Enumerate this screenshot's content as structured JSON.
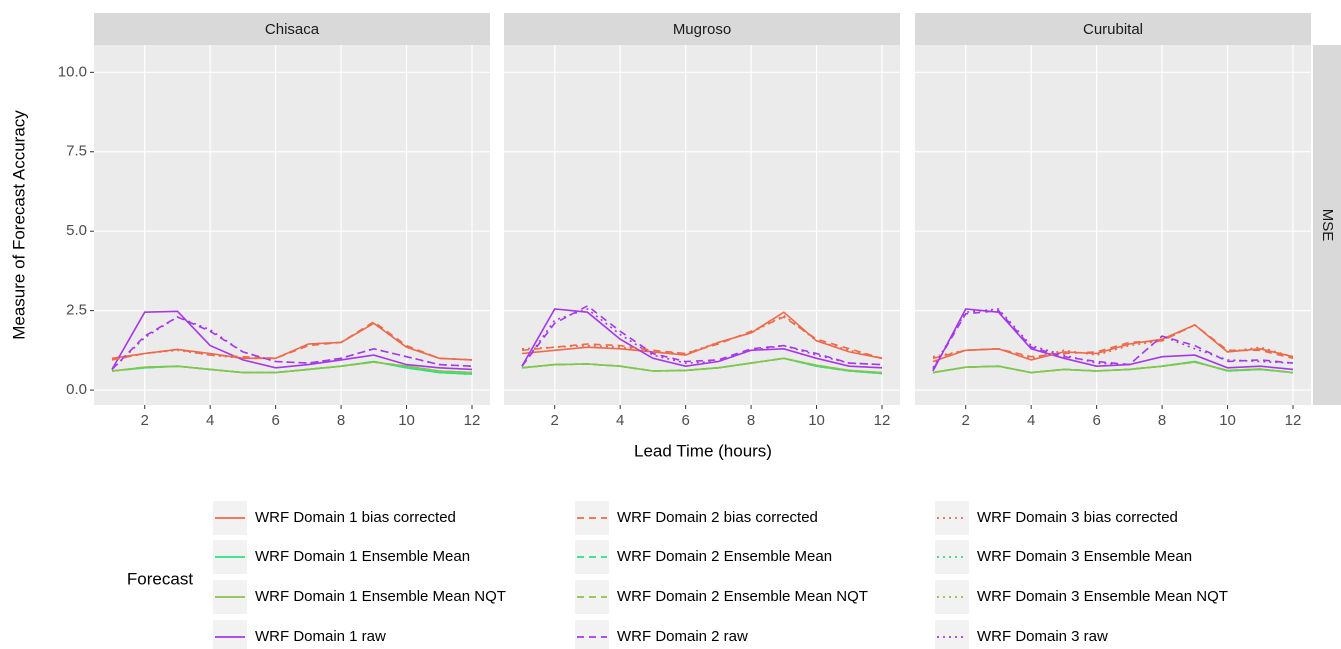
{
  "chart_data": {
    "type": "line",
    "x_label": "Lead Time (hours)",
    "y_label": "Measure of Forecast Accuracy",
    "facet_label": "MSE",
    "legend_title": "Forecast",
    "panels": [
      "Chisaca",
      "Mugroso",
      "Curubital"
    ],
    "x": [
      1,
      2,
      3,
      4,
      5,
      6,
      7,
      8,
      9,
      10,
      11,
      12
    ],
    "xlim": [
      0.45,
      12.55
    ],
    "xticks": [
      2,
      4,
      6,
      8,
      10,
      12
    ],
    "ylim": [
      -0.47,
      10.86
    ],
    "yticks": [
      {
        "value": 0,
        "label": "0.0"
      },
      {
        "value": 2.5,
        "label": "2.5"
      },
      {
        "value": 5,
        "label": "5.0"
      },
      {
        "value": 7.5,
        "label": "7.5"
      },
      {
        "value": 10,
        "label": "10.0"
      }
    ],
    "grid": true,
    "series": [
      {
        "name": "WRF Domain 1 bias corrected",
        "color": "#ee6a4c",
        "dash": "solid",
        "values": [
          [
            1.0,
            1.15,
            1.28,
            1.15,
            1.0,
            1.0,
            1.45,
            1.5,
            2.1,
            1.35,
            1.0,
            0.95
          ],
          [
            1.15,
            1.25,
            1.35,
            1.3,
            1.2,
            1.1,
            1.5,
            1.8,
            2.45,
            1.55,
            1.2,
            1.0
          ],
          [
            0.9,
            1.25,
            1.3,
            0.95,
            1.2,
            1.15,
            1.45,
            1.6,
            2.05,
            1.2,
            1.3,
            1.05
          ]
        ]
      },
      {
        "name": "WRF Domain 1 Ensemble Mean",
        "color": "#2be37f",
        "dash": "solid",
        "values": [
          [
            0.6,
            0.7,
            0.75,
            0.65,
            0.55,
            0.55,
            0.65,
            0.75,
            0.9,
            0.7,
            0.55,
            0.5
          ],
          [
            0.7,
            0.8,
            0.82,
            0.75,
            0.6,
            0.62,
            0.7,
            0.85,
            1.0,
            0.75,
            0.6,
            0.52
          ],
          [
            0.55,
            0.72,
            0.75,
            0.55,
            0.65,
            0.6,
            0.65,
            0.75,
            0.9,
            0.6,
            0.65,
            0.55
          ]
        ]
      },
      {
        "name": "WRF Domain 1 Ensemble Mean NQT",
        "color": "#8bc34a",
        "dash": "solid",
        "values": [
          [
            0.6,
            0.72,
            0.75,
            0.65,
            0.55,
            0.55,
            0.65,
            0.75,
            0.88,
            0.75,
            0.6,
            0.55
          ],
          [
            0.7,
            0.8,
            0.82,
            0.75,
            0.6,
            0.62,
            0.7,
            0.85,
            1.0,
            0.78,
            0.62,
            0.55
          ],
          [
            0.55,
            0.72,
            0.75,
            0.55,
            0.65,
            0.6,
            0.65,
            0.75,
            0.88,
            0.62,
            0.66,
            0.55
          ]
        ]
      },
      {
        "name": "WRF Domain 1 raw",
        "color": "#a638e8",
        "dash": "solid",
        "values": [
          [
            0.65,
            2.45,
            2.48,
            1.4,
            0.95,
            0.7,
            0.8,
            0.95,
            1.1,
            0.8,
            0.7,
            0.65
          ],
          [
            0.75,
            2.55,
            2.45,
            1.6,
            1.0,
            0.75,
            0.9,
            1.25,
            1.3,
            1.0,
            0.75,
            0.7
          ],
          [
            0.6,
            2.55,
            2.45,
            1.3,
            1.0,
            0.75,
            0.8,
            1.05,
            1.1,
            0.7,
            0.75,
            0.65
          ]
        ]
      },
      {
        "name": "WRF Domain 2 bias corrected",
        "color": "#ee6a4c",
        "dash": "dashed",
        "values": [
          [
            0.95,
            1.15,
            1.28,
            1.1,
            1.05,
            1.0,
            1.4,
            1.5,
            2.15,
            1.4,
            1.0,
            0.95
          ],
          [
            1.25,
            1.35,
            1.45,
            1.4,
            1.25,
            1.15,
            1.45,
            1.85,
            2.3,
            1.6,
            1.3,
            1.0
          ],
          [
            1.0,
            1.25,
            1.3,
            1.05,
            1.15,
            1.2,
            1.5,
            1.55,
            2.05,
            1.25,
            1.25,
            1.0
          ]
        ]
      },
      {
        "name": "WRF Domain 2 Ensemble Mean",
        "color": "#2be37f",
        "dash": "dashed",
        "values": [
          [
            0.6,
            0.7,
            0.75,
            0.65,
            0.55,
            0.55,
            0.65,
            0.75,
            0.9,
            0.7,
            0.55,
            0.5
          ],
          [
            0.7,
            0.8,
            0.82,
            0.75,
            0.6,
            0.62,
            0.7,
            0.85,
            1.0,
            0.75,
            0.6,
            0.52
          ],
          [
            0.55,
            0.72,
            0.75,
            0.55,
            0.65,
            0.6,
            0.65,
            0.75,
            0.9,
            0.6,
            0.65,
            0.55
          ]
        ]
      },
      {
        "name": "WRF Domain 2 Ensemble Mean NQT",
        "color": "#8bc34a",
        "dash": "dashed",
        "values": [
          [
            0.6,
            0.72,
            0.75,
            0.65,
            0.55,
            0.55,
            0.65,
            0.75,
            0.88,
            0.75,
            0.6,
            0.55
          ],
          [
            0.7,
            0.8,
            0.82,
            0.75,
            0.6,
            0.62,
            0.7,
            0.85,
            1.0,
            0.78,
            0.62,
            0.55
          ],
          [
            0.55,
            0.72,
            0.75,
            0.55,
            0.65,
            0.6,
            0.65,
            0.75,
            0.88,
            0.62,
            0.66,
            0.55
          ]
        ]
      },
      {
        "name": "WRF Domain 2 raw",
        "color": "#a638e8",
        "dash": "dashed",
        "values": [
          [
            0.65,
            1.7,
            2.3,
            1.85,
            1.2,
            0.9,
            0.85,
            1.0,
            1.3,
            1.05,
            0.8,
            0.75
          ],
          [
            0.75,
            2.1,
            2.65,
            1.85,
            1.15,
            0.9,
            0.95,
            1.3,
            1.4,
            1.15,
            0.85,
            0.8
          ],
          [
            0.65,
            2.4,
            2.5,
            1.35,
            1.05,
            0.9,
            0.8,
            1.7,
            1.4,
            0.9,
            0.95,
            0.85
          ]
        ]
      },
      {
        "name": "WRF Domain 3 bias corrected",
        "color": "#ee6a4c",
        "dash": "dotted",
        "values": [
          [
            0.95,
            1.15,
            1.25,
            1.1,
            1.0,
            1.0,
            1.45,
            1.5,
            2.1,
            1.35,
            1.0,
            0.95
          ],
          [
            1.3,
            1.35,
            1.4,
            1.35,
            1.2,
            1.15,
            1.5,
            1.8,
            2.35,
            1.55,
            1.25,
            1.0
          ],
          [
            1.05,
            1.25,
            1.3,
            1.0,
            1.25,
            1.1,
            1.4,
            1.55,
            2.05,
            1.2,
            1.35,
            1.05
          ]
        ]
      },
      {
        "name": "WRF Domain 3 Ensemble Mean",
        "color": "#2be37f",
        "dash": "dotted",
        "values": [
          [
            0.6,
            0.7,
            0.75,
            0.65,
            0.55,
            0.55,
            0.65,
            0.75,
            0.9,
            0.7,
            0.55,
            0.5
          ],
          [
            0.7,
            0.8,
            0.82,
            0.75,
            0.6,
            0.62,
            0.7,
            0.85,
            1.0,
            0.75,
            0.6,
            0.52
          ],
          [
            0.55,
            0.72,
            0.75,
            0.55,
            0.65,
            0.6,
            0.65,
            0.75,
            0.9,
            0.6,
            0.65,
            0.55
          ]
        ]
      },
      {
        "name": "WRF Domain 3 Ensemble Mean NQT",
        "color": "#8bc34a",
        "dash": "dotted",
        "values": [
          [
            0.6,
            0.72,
            0.75,
            0.65,
            0.55,
            0.55,
            0.65,
            0.75,
            0.88,
            0.75,
            0.6,
            0.55
          ],
          [
            0.7,
            0.8,
            0.82,
            0.75,
            0.6,
            0.62,
            0.7,
            0.85,
            1.0,
            0.78,
            0.62,
            0.55
          ],
          [
            0.55,
            0.72,
            0.75,
            0.55,
            0.65,
            0.6,
            0.65,
            0.75,
            0.88,
            0.62,
            0.66,
            0.55
          ]
        ]
      },
      {
        "name": "WRF Domain 3 raw",
        "color": "#a638e8",
        "dash": "dotted",
        "values": [
          [
            0.65,
            1.65,
            2.3,
            1.9,
            1.2,
            0.9,
            0.85,
            1.0,
            1.3,
            1.05,
            0.8,
            0.75
          ],
          [
            0.75,
            2.2,
            2.55,
            1.75,
            1.1,
            0.85,
            0.9,
            1.25,
            1.4,
            1.1,
            0.85,
            0.8
          ],
          [
            0.7,
            2.45,
            2.55,
            1.4,
            1.1,
            0.85,
            0.8,
            1.7,
            1.3,
            0.95,
            0.9,
            0.85
          ]
        ]
      }
    ]
  }
}
